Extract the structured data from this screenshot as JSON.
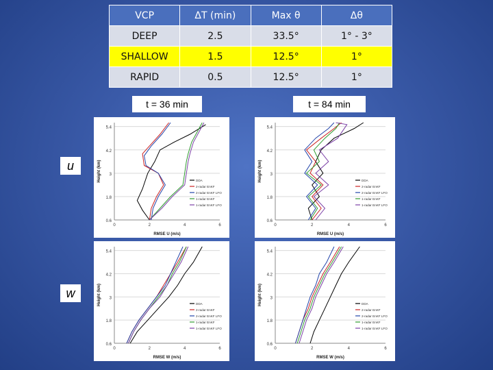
{
  "table": {
    "headers": [
      "VCP",
      "ΔT (min)",
      "Max θ",
      "Δθ"
    ],
    "rows": [
      [
        "DEEP",
        "2.5",
        "33.5°",
        "1° - 3°"
      ],
      [
        "SHALLOW",
        "1.5",
        "12.5°",
        "1°"
      ],
      [
        "RAPID",
        "0.5",
        "12.5°",
        "1°"
      ]
    ],
    "highlight_color": "#ffff00"
  },
  "time_labels": {
    "left": "t = 36 min",
    "right": "t = 84 min"
  },
  "row_labels": {
    "top": "u",
    "bottom": "w"
  },
  "chart_data": [
    {
      "type": "line",
      "panel": "u-36",
      "xlabel": "RMSE U (m/s)",
      "ylabel": "Height (km)",
      "xlim": [
        0,
        6
      ],
      "ylim": [
        0.6,
        5.6
      ],
      "xticks": [
        0,
        2,
        4,
        6
      ],
      "yticks": [
        0.6,
        1.8,
        3.0,
        4.2,
        5.4
      ],
      "series": [
        {
          "name": "DDA",
          "color": "#000000",
          "points": [
            [
              2.0,
              0.6
            ],
            [
              1.6,
              1.1
            ],
            [
              1.3,
              1.6
            ],
            [
              1.6,
              2.2
            ],
            [
              1.9,
              3.0
            ],
            [
              2.3,
              3.6
            ],
            [
              2.6,
              4.2
            ],
            [
              3.4,
              4.6
            ],
            [
              4.3,
              5.0
            ],
            [
              5.2,
              5.5
            ]
          ]
        },
        {
          "name": "2-radar EnKF",
          "color": "#cc2222",
          "points": [
            [
              2.0,
              0.6
            ],
            [
              2.1,
              1.2
            ],
            [
              2.4,
              1.8
            ],
            [
              2.8,
              2.4
            ],
            [
              2.5,
              3.0
            ],
            [
              1.7,
              3.4
            ],
            [
              1.6,
              4.0
            ],
            [
              2.0,
              4.4
            ],
            [
              2.6,
              5.0
            ],
            [
              3.1,
              5.6
            ]
          ]
        },
        {
          "name": "2-radar EnKF LFO",
          "color": "#2244aa",
          "points": [
            [
              2.1,
              0.6
            ],
            [
              2.2,
              1.2
            ],
            [
              2.5,
              1.8
            ],
            [
              2.9,
              2.4
            ],
            [
              2.5,
              3.0
            ],
            [
              1.8,
              3.4
            ],
            [
              1.7,
              3.9
            ],
            [
              2.1,
              4.4
            ],
            [
              2.7,
              5.0
            ],
            [
              3.2,
              5.6
            ]
          ]
        },
        {
          "name": "1-radar EnKF",
          "color": "#2e9b2e",
          "points": [
            [
              2.0,
              0.6
            ],
            [
              2.6,
              1.2
            ],
            [
              3.2,
              1.8
            ],
            [
              3.9,
              2.4
            ],
            [
              4.0,
              3.0
            ],
            [
              4.1,
              3.6
            ],
            [
              4.2,
              4.0
            ],
            [
              4.4,
              4.6
            ],
            [
              4.7,
              5.1
            ],
            [
              5.0,
              5.6
            ]
          ]
        },
        {
          "name": "1-radar EnKF LFO",
          "color": "#7b3fa6",
          "points": [
            [
              2.0,
              0.6
            ],
            [
              2.7,
              1.2
            ],
            [
              3.3,
              1.8
            ],
            [
              4.0,
              2.4
            ],
            [
              4.1,
              3.0
            ],
            [
              4.2,
              3.6
            ],
            [
              4.3,
              4.0
            ],
            [
              4.5,
              4.6
            ],
            [
              4.8,
              5.1
            ],
            [
              5.1,
              5.6
            ]
          ]
        }
      ]
    },
    {
      "type": "line",
      "panel": "u-84",
      "xlabel": "RMSE U (m/s)",
      "ylabel": "Height (km)",
      "xlim": [
        0,
        6
      ],
      "ylim": [
        0.6,
        5.6
      ],
      "xticks": [
        0,
        2,
        4,
        6
      ],
      "yticks": [
        0.6,
        1.8,
        3.0,
        4.2,
        5.4
      ],
      "series": [
        {
          "name": "DDA",
          "color": "#000000",
          "points": [
            [
              2.0,
              0.6
            ],
            [
              1.8,
              1.2
            ],
            [
              2.4,
              1.8
            ],
            [
              2.0,
              2.4
            ],
            [
              2.6,
              3.0
            ],
            [
              2.2,
              3.6
            ],
            [
              2.5,
              4.2
            ],
            [
              3.2,
              4.8
            ],
            [
              4.3,
              5.3
            ],
            [
              4.8,
              5.6
            ]
          ]
        },
        {
          "name": "2-radar EnKF",
          "color": "#cc2222",
          "points": [
            [
              2.0,
              0.6
            ],
            [
              2.5,
              1.2
            ],
            [
              2.0,
              1.8
            ],
            [
              2.6,
              2.4
            ],
            [
              1.9,
              3.0
            ],
            [
              2.2,
              3.6
            ],
            [
              1.7,
              4.2
            ],
            [
              2.5,
              4.8
            ],
            [
              3.2,
              5.3
            ],
            [
              3.6,
              5.6
            ]
          ]
        },
        {
          "name": "2-radar EnKF LFO",
          "color": "#2244aa",
          "points": [
            [
              1.8,
              0.6
            ],
            [
              2.2,
              1.2
            ],
            [
              1.7,
              1.8
            ],
            [
              2.3,
              2.4
            ],
            [
              1.6,
              3.0
            ],
            [
              2.0,
              3.6
            ],
            [
              1.6,
              4.2
            ],
            [
              2.2,
              4.8
            ],
            [
              2.9,
              5.3
            ],
            [
              3.2,
              5.6
            ]
          ]
        },
        {
          "name": "1-radar EnKF",
          "color": "#2e9b2e",
          "points": [
            [
              1.9,
              0.6
            ],
            [
              2.3,
              1.2
            ],
            [
              1.8,
              1.8
            ],
            [
              2.5,
              2.4
            ],
            [
              1.7,
              3.0
            ],
            [
              2.4,
              3.6
            ],
            [
              2.1,
              4.2
            ],
            [
              2.7,
              4.8
            ],
            [
              3.3,
              5.3
            ],
            [
              3.5,
              5.6
            ]
          ]
        },
        {
          "name": "1-radar EnKF LFO",
          "color": "#7b3fa6",
          "points": [
            [
              2.2,
              0.6
            ],
            [
              2.7,
              1.2
            ],
            [
              2.1,
              1.8
            ],
            [
              2.9,
              2.4
            ],
            [
              2.2,
              3.0
            ],
            [
              2.9,
              3.6
            ],
            [
              2.4,
              4.2
            ],
            [
              3.4,
              4.8
            ],
            [
              3.9,
              5.5
            ],
            [
              3.3,
              5.6
            ]
          ]
        }
      ]
    },
    {
      "type": "line",
      "panel": "w-36",
      "xlabel": "RMSE W (m/s)",
      "ylabel": "Height (km)",
      "xlim": [
        0,
        6
      ],
      "ylim": [
        0.6,
        5.6
      ],
      "xticks": [
        0,
        2,
        4,
        6
      ],
      "yticks": [
        0.6,
        1.8,
        3.0,
        4.2,
        5.4
      ],
      "series": [
        {
          "name": "DDA",
          "color": "#000000",
          "points": [
            [
              0.9,
              0.6
            ],
            [
              1.3,
              1.2
            ],
            [
              1.9,
              1.8
            ],
            [
              2.5,
              2.4
            ],
            [
              3.1,
              3.0
            ],
            [
              3.6,
              3.6
            ],
            [
              4.0,
              4.2
            ],
            [
              4.5,
              4.8
            ],
            [
              5.0,
              5.6
            ]
          ]
        },
        {
          "name": "2-radar EnKF",
          "color": "#cc2222",
          "points": [
            [
              0.7,
              0.6
            ],
            [
              1.0,
              1.2
            ],
            [
              1.4,
              1.8
            ],
            [
              1.9,
              2.4
            ],
            [
              2.4,
              3.0
            ],
            [
              2.8,
              3.6
            ],
            [
              3.2,
              4.2
            ],
            [
              3.6,
              4.8
            ],
            [
              4.1,
              5.6
            ]
          ]
        },
        {
          "name": "2-radar EnKF LFO",
          "color": "#2244aa",
          "points": [
            [
              0.7,
              0.6
            ],
            [
              1.0,
              1.2
            ],
            [
              1.4,
              1.8
            ],
            [
              1.9,
              2.4
            ],
            [
              2.4,
              3.0
            ],
            [
              2.9,
              3.6
            ],
            [
              3.2,
              4.2
            ],
            [
              3.5,
              4.8
            ],
            [
              3.9,
              5.6
            ]
          ]
        },
        {
          "name": "1-radar EnKF",
          "color": "#2e9b2e",
          "points": [
            [
              0.8,
              0.6
            ],
            [
              1.1,
              1.2
            ],
            [
              1.5,
              1.8
            ],
            [
              2.0,
              2.4
            ],
            [
              2.5,
              3.0
            ],
            [
              3.0,
              3.6
            ],
            [
              3.3,
              4.2
            ],
            [
              3.7,
              4.8
            ],
            [
              4.1,
              5.6
            ]
          ]
        },
        {
          "name": "1-radar EnKF LFO",
          "color": "#7b3fa6",
          "points": [
            [
              0.8,
              0.6
            ],
            [
              1.1,
              1.2
            ],
            [
              1.5,
              1.8
            ],
            [
              2.0,
              2.4
            ],
            [
              2.6,
              3.0
            ],
            [
              3.0,
              3.6
            ],
            [
              3.4,
              4.2
            ],
            [
              3.8,
              4.8
            ],
            [
              4.2,
              5.6
            ]
          ]
        }
      ]
    },
    {
      "type": "line",
      "panel": "w-84",
      "xlabel": "RMSE W (m/s)",
      "ylabel": "Height (km)",
      "xlim": [
        0,
        6
      ],
      "ylim": [
        0.6,
        5.6
      ],
      "xticks": [
        0,
        2,
        4,
        6
      ],
      "yticks": [
        0.6,
        1.8,
        3.0,
        4.2,
        5.4
      ],
      "series": [
        {
          "name": "DDA",
          "color": "#000000",
          "points": [
            [
              1.9,
              0.6
            ],
            [
              2.1,
              1.2
            ],
            [
              2.4,
              1.8
            ],
            [
              2.7,
              2.4
            ],
            [
              3.0,
              3.0
            ],
            [
              3.3,
              3.6
            ],
            [
              3.6,
              4.2
            ],
            [
              4.0,
              4.8
            ],
            [
              4.6,
              5.6
            ]
          ]
        },
        {
          "name": "2-radar EnKF",
          "color": "#cc2222",
          "points": [
            [
              1.1,
              0.6
            ],
            [
              1.3,
              1.2
            ],
            [
              1.5,
              1.8
            ],
            [
              1.8,
              2.4
            ],
            [
              2.0,
              3.0
            ],
            [
              2.3,
              3.6
            ],
            [
              2.6,
              4.2
            ],
            [
              3.0,
              4.8
            ],
            [
              3.5,
              5.6
            ]
          ]
        },
        {
          "name": "2-radar EnKF LFO",
          "color": "#2244aa",
          "points": [
            [
              1.1,
              0.6
            ],
            [
              1.3,
              1.2
            ],
            [
              1.5,
              1.8
            ],
            [
              1.7,
              2.4
            ],
            [
              1.9,
              3.0
            ],
            [
              2.2,
              3.6
            ],
            [
              2.4,
              4.2
            ],
            [
              2.8,
              4.8
            ],
            [
              3.2,
              5.6
            ]
          ]
        },
        {
          "name": "1-radar EnKF",
          "color": "#2e9b2e",
          "points": [
            [
              1.2,
              0.6
            ],
            [
              1.4,
              1.2
            ],
            [
              1.6,
              1.8
            ],
            [
              1.9,
              2.4
            ],
            [
              2.1,
              3.0
            ],
            [
              2.4,
              3.6
            ],
            [
              2.7,
              4.2
            ],
            [
              3.1,
              4.8
            ],
            [
              3.6,
              5.6
            ]
          ]
        },
        {
          "name": "1-radar EnKF LFO",
          "color": "#7b3fa6",
          "points": [
            [
              1.3,
              0.6
            ],
            [
              1.5,
              1.2
            ],
            [
              1.7,
              1.8
            ],
            [
              2.0,
              2.4
            ],
            [
              2.2,
              3.0
            ],
            [
              2.5,
              3.6
            ],
            [
              2.8,
              4.2
            ],
            [
              3.2,
              4.8
            ],
            [
              3.7,
              5.6
            ]
          ]
        }
      ]
    }
  ]
}
